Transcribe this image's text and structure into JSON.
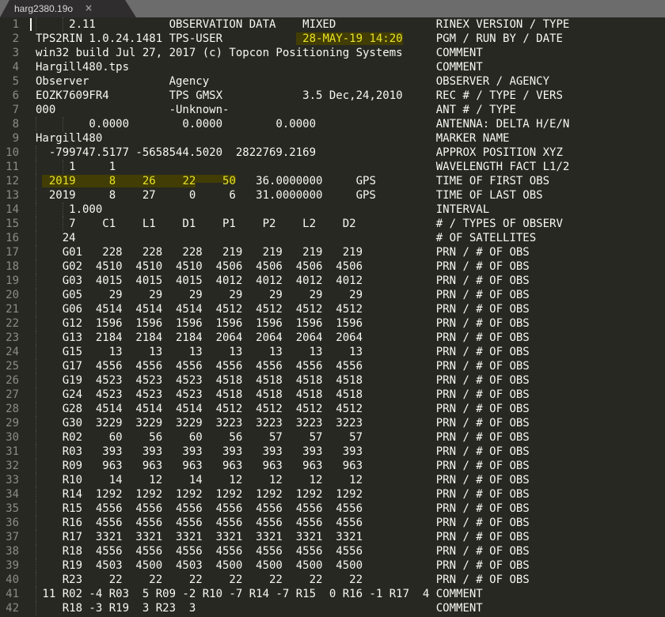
{
  "tab": {
    "title": "harg2380.19o",
    "close_icon": "×"
  },
  "colors": {
    "tab_bar_bg": "#6c6c6c",
    "tab_bg": "#2f2d2e",
    "editor_bg": "#272822",
    "text": "#f8f8f2",
    "line_number": "#8b8c85",
    "highlight_bg": "#423d04",
    "highlight_text": "#e7e327"
  },
  "editor": {
    "pad_to_col": 60,
    "lines": [
      {
        "num": 1,
        "caret": true,
        "parts": [
          {
            "t": "     2.11           OBSERVATION DATA    MIXED"
          }
        ],
        "label": "RINEX VERSION / TYPE"
      },
      {
        "num": 2,
        "parts": [
          {
            "t": "TPS2RIN 1.0.24.1481 TPS-USER           "
          },
          {
            "t": " 28-MAY-19 14:20",
            "s": "hl"
          }
        ],
        "label": "PGM / RUN BY / DATE"
      },
      {
        "num": 3,
        "parts": [
          {
            "t": "win32 build Jul 27, 2017 (c) Topcon Positioning Systems"
          }
        ],
        "label": "COMMENT"
      },
      {
        "num": 4,
        "parts": [
          {
            "t": "Hargill480.tps"
          }
        ],
        "label": "COMMENT"
      },
      {
        "num": 5,
        "parts": [
          {
            "t": "Observer            Agency"
          }
        ],
        "label": "OBSERVER / AGENCY"
      },
      {
        "num": 6,
        "parts": [
          {
            "t": "EOZK7609FR4         TPS GMSX            3.5 Dec,24,2010"
          }
        ],
        "label": "REC # / TYPE / VERS"
      },
      {
        "num": 7,
        "parts": [
          {
            "t": "000                 -Unknown-"
          }
        ],
        "label": "ANT # / TYPE"
      },
      {
        "num": 8,
        "parts": [
          {
            "t": "        0.0000        0.0000        0.0000"
          }
        ],
        "label": "ANTENNA: DELTA H/E/N"
      },
      {
        "num": 9,
        "parts": [
          {
            "t": "Hargill480"
          }
        ],
        "label": "MARKER NAME"
      },
      {
        "num": 10,
        "parts": [
          {
            "t": "  -799747.5177 -5658544.5020  2822769.2169"
          }
        ],
        "label": "APPROX POSITION XYZ"
      },
      {
        "num": 11,
        "parts": [
          {
            "t": "     1     1"
          }
        ],
        "label": "WAVELENGTH FACT L1/2"
      },
      {
        "num": 12,
        "parts": [
          {
            "t": " "
          },
          {
            "t": " 2019     8    26    22",
            "s": "hl"
          },
          {
            "t": "    50",
            "s": "hlTop"
          },
          {
            "t": "   36.0000000     GPS"
          }
        ],
        "label": "TIME OF FIRST OBS"
      },
      {
        "num": 13,
        "parts": [
          {
            "t": "  2019     8    27     0     6   31.0000000     GPS"
          }
        ],
        "label": "TIME OF LAST OBS"
      },
      {
        "num": 14,
        "parts": [
          {
            "t": "     1.000"
          }
        ],
        "label": "INTERVAL"
      },
      {
        "num": 15,
        "parts": [
          {
            "t": "     7    C1    L1    D1    P1    P2    L2    D2"
          }
        ],
        "label": "# / TYPES OF OBSERV"
      },
      {
        "num": 16,
        "parts": [
          {
            "t": "    24"
          }
        ],
        "label": "# OF SATELLITES"
      },
      {
        "num": 17,
        "prn": "G01",
        "counts": [
          228,
          228,
          228,
          219,
          219,
          219,
          219
        ],
        "label": "PRN / # OF OBS"
      },
      {
        "num": 18,
        "prn": "G02",
        "counts": [
          4510,
          4510,
          4510,
          4506,
          4506,
          4506,
          4506
        ],
        "label": "PRN / # OF OBS"
      },
      {
        "num": 19,
        "prn": "G03",
        "counts": [
          4015,
          4015,
          4015,
          4012,
          4012,
          4012,
          4012
        ],
        "label": "PRN / # OF OBS"
      },
      {
        "num": 20,
        "prn": "G05",
        "counts": [
          29,
          29,
          29,
          29,
          29,
          29,
          29
        ],
        "label": "PRN / # OF OBS"
      },
      {
        "num": 21,
        "prn": "G06",
        "counts": [
          4514,
          4514,
          4514,
          4512,
          4512,
          4512,
          4512
        ],
        "label": "PRN / # OF OBS"
      },
      {
        "num": 22,
        "prn": "G12",
        "counts": [
          1596,
          1596,
          1596,
          1596,
          1596,
          1596,
          1596
        ],
        "label": "PRN / # OF OBS"
      },
      {
        "num": 23,
        "prn": "G13",
        "counts": [
          2184,
          2184,
          2184,
          2064,
          2064,
          2064,
          2064
        ],
        "label": "PRN / # OF OBS"
      },
      {
        "num": 24,
        "prn": "G15",
        "counts": [
          13,
          13,
          13,
          13,
          13,
          13,
          13
        ],
        "label": "PRN / # OF OBS"
      },
      {
        "num": 25,
        "prn": "G17",
        "counts": [
          4556,
          4556,
          4556,
          4556,
          4556,
          4556,
          4556
        ],
        "label": "PRN / # OF OBS"
      },
      {
        "num": 26,
        "prn": "G19",
        "counts": [
          4523,
          4523,
          4523,
          4518,
          4518,
          4518,
          4518
        ],
        "label": "PRN / # OF OBS"
      },
      {
        "num": 27,
        "prn": "G24",
        "counts": [
          4523,
          4523,
          4523,
          4518,
          4518,
          4518,
          4518
        ],
        "label": "PRN / # OF OBS"
      },
      {
        "num": 28,
        "prn": "G28",
        "counts": [
          4514,
          4514,
          4514,
          4512,
          4512,
          4512,
          4512
        ],
        "label": "PRN / # OF OBS"
      },
      {
        "num": 29,
        "prn": "G30",
        "counts": [
          3229,
          3229,
          3229,
          3223,
          3223,
          3223,
          3223
        ],
        "label": "PRN / # OF OBS"
      },
      {
        "num": 30,
        "prn": "R02",
        "counts": [
          60,
          56,
          60,
          56,
          57,
          57,
          57
        ],
        "label": "PRN / # OF OBS"
      },
      {
        "num": 31,
        "prn": "R03",
        "counts": [
          393,
          393,
          393,
          393,
          393,
          393,
          393
        ],
        "label": "PRN / # OF OBS"
      },
      {
        "num": 32,
        "prn": "R09",
        "counts": [
          963,
          963,
          963,
          963,
          963,
          963,
          963
        ],
        "label": "PRN / # OF OBS"
      },
      {
        "num": 33,
        "prn": "R10",
        "counts": [
          14,
          12,
          14,
          12,
          12,
          12,
          12
        ],
        "label": "PRN / # OF OBS"
      },
      {
        "num": 34,
        "prn": "R14",
        "counts": [
          1292,
          1292,
          1292,
          1292,
          1292,
          1292,
          1292
        ],
        "label": "PRN / # OF OBS"
      },
      {
        "num": 35,
        "prn": "R15",
        "counts": [
          4556,
          4556,
          4556,
          4556,
          4556,
          4556,
          4556
        ],
        "label": "PRN / # OF OBS"
      },
      {
        "num": 36,
        "prn": "R16",
        "counts": [
          4556,
          4556,
          4556,
          4556,
          4556,
          4556,
          4556
        ],
        "label": "PRN / # OF OBS"
      },
      {
        "num": 37,
        "prn": "R17",
        "counts": [
          3321,
          3321,
          3321,
          3321,
          3321,
          3321,
          3321
        ],
        "label": "PRN / # OF OBS"
      },
      {
        "num": 38,
        "prn": "R18",
        "counts": [
          4556,
          4556,
          4556,
          4556,
          4556,
          4556,
          4556
        ],
        "label": "PRN / # OF OBS"
      },
      {
        "num": 39,
        "prn": "R19",
        "counts": [
          4503,
          4500,
          4503,
          4500,
          4500,
          4500,
          4500
        ],
        "label": "PRN / # OF OBS"
      },
      {
        "num": 40,
        "prn": "R23",
        "counts": [
          22,
          22,
          22,
          22,
          22,
          22,
          22
        ],
        "label": "PRN / # OF OBS"
      },
      {
        "num": 41,
        "parts": [
          {
            "t": " 11 R02 -4 R03  5 R09 -2 R10 -7 R14 -7 R15  0 R16 -1 R17  4"
          }
        ],
        "label": "COMMENT"
      },
      {
        "num": 42,
        "parts": [
          {
            "t": "    R18 -3 R19  3 R23  3"
          }
        ],
        "label": "COMMENT"
      }
    ]
  }
}
